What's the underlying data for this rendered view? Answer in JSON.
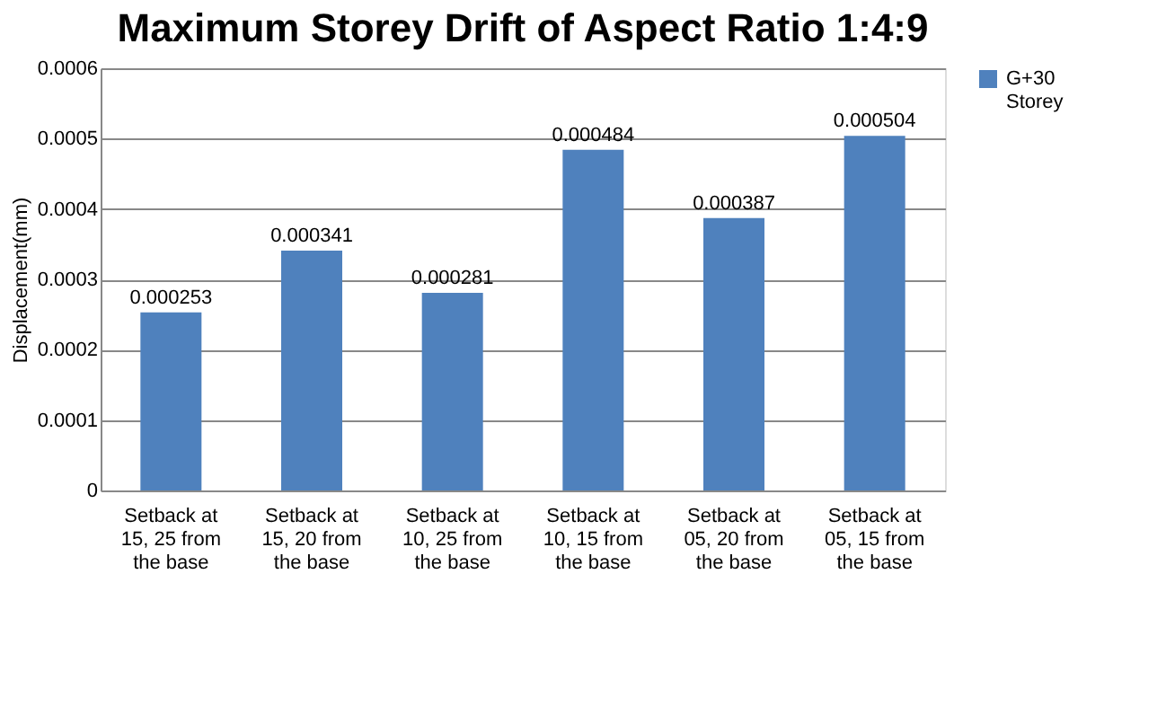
{
  "chart_data": {
    "type": "bar",
    "title": "Maximum Storey Drift of Aspect Ratio 1:4:9",
    "ylabel": "Displacement(mm)",
    "categories": [
      "Setback at 15, 25 from the base",
      "Setback at 15, 20 from the base",
      "Setback at 10, 25 from the base",
      "Setback at 10, 15 from the base",
      "Setback at 05, 20 from the base",
      "Setback at 05, 15 from the base"
    ],
    "series": [
      {
        "name": "G+30 Storey",
        "color": "#4f81bd",
        "values": [
          0.000253,
          0.000341,
          0.000281,
          0.000484,
          0.000387,
          0.000504
        ]
      }
    ],
    "ylim": [
      0,
      0.0006
    ],
    "yticks": [
      0,
      0.0001,
      0.0002,
      0.0003,
      0.0004,
      0.0005,
      0.0006
    ],
    "grid": "y",
    "legend": "right",
    "data_labels": true
  }
}
